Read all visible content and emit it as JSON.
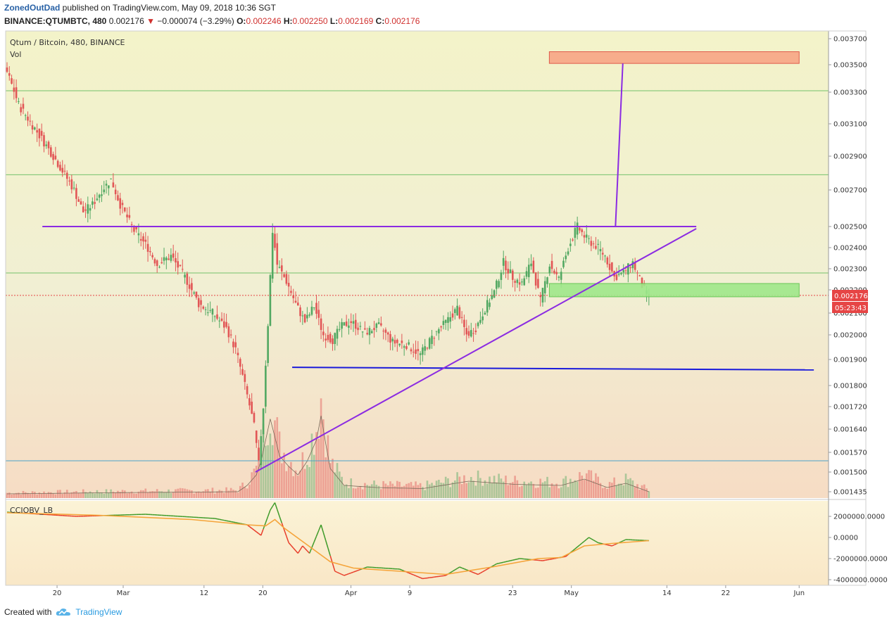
{
  "header": {
    "author": "ZonedOutDad",
    "published_text": "published on TradingView.com, May 09, 2018 10:36 SGT",
    "symbol": "BINANCE:QTUMBTC, 480",
    "last": "0.002176",
    "change_arrow": "▼",
    "change": "−0.000074 (−3.29%)",
    "ohlc": [
      {
        "label": "O:",
        "value": "0.002246"
      },
      {
        "label": "H:",
        "value": "0.002250"
      },
      {
        "label": "L:",
        "value": "0.002169"
      },
      {
        "label": "C:",
        "value": "0.002176"
      }
    ]
  },
  "legend": {
    "title": "Qtum / Bitcoin, 480, BINANCE",
    "volume": "Vol",
    "indicator": "CCIOBV_LB"
  },
  "price_badge": {
    "value": "0.002176",
    "countdown": "05:23:43",
    "color": "#e64545"
  },
  "footer": {
    "created_with": "Created with",
    "brand": "TradingView",
    "icon": "tradingview-cloud-icon"
  },
  "colors": {
    "up": "#52a862",
    "down": "#e25656",
    "trend_line": "#8b2be2",
    "support_line": "#1a1adb",
    "target_zone": "#f7ad8c",
    "buy_zone": "#9fe88a",
    "h_green": "#74c26b",
    "h_blue": "#4aa3c9",
    "cci_green": "#3f9b2a",
    "cci_red": "#e83d2a",
    "cci_orange": "#f5a43a"
  },
  "chart_data": [
    {
      "type": "candlestick",
      "title": "Qtum / Bitcoin, 480, BINANCE",
      "x_ticks": [
        "20",
        "Mar",
        "12",
        "20",
        "Apr",
        "9",
        "23",
        "May",
        "14",
        "22",
        "Jun"
      ],
      "y_ticks": [
        "0.003700",
        "0.003500",
        "0.003300",
        "0.003100",
        "0.002900",
        "0.002700",
        "0.002500",
        "0.002400",
        "0.002300",
        "0.002200",
        "0.002100",
        "0.002000",
        "0.001900",
        "0.001800",
        "0.001720",
        "0.001640",
        "0.001570",
        "0.001500",
        "0.001435"
      ],
      "ylim": [
        0.001435,
        0.0037
      ],
      "grid": false,
      "price_path": [
        [
          0,
          0.00349
        ],
        [
          6,
          0.00322
        ],
        [
          14,
          0.00305
        ],
        [
          22,
          0.00288
        ],
        [
          30,
          0.0027
        ],
        [
          34,
          0.00258
        ],
        [
          38,
          0.00262
        ],
        [
          42,
          0.0027
        ],
        [
          46,
          0.00276
        ],
        [
          50,
          0.00262
        ],
        [
          56,
          0.00248
        ],
        [
          62,
          0.0024
        ],
        [
          66,
          0.00232
        ],
        [
          72,
          0.00236
        ],
        [
          78,
          0.00226
        ],
        [
          84,
          0.00214
        ],
        [
          90,
          0.0021
        ],
        [
          96,
          0.00203
        ],
        [
          100,
          0.00194
        ],
        [
          104,
          0.0018
        ],
        [
          108,
          0.00165
        ],
        [
          110,
          0.00153
        ],
        [
          112,
          0.00172
        ],
        [
          114,
          0.00205
        ],
        [
          116,
          0.00248
        ],
        [
          118,
          0.00232
        ],
        [
          122,
          0.00224
        ],
        [
          126,
          0.00214
        ],
        [
          130,
          0.00206
        ],
        [
          134,
          0.00213
        ],
        [
          138,
          0.002
        ],
        [
          142,
          0.00198
        ],
        [
          146,
          0.00204
        ],
        [
          150,
          0.00206
        ],
        [
          156,
          0.00201
        ],
        [
          162,
          0.00204
        ],
        [
          168,
          0.00197
        ],
        [
          174,
          0.00196
        ],
        [
          180,
          0.00192
        ],
        [
          186,
          0.002
        ],
        [
          192,
          0.00207
        ],
        [
          196,
          0.00212
        ],
        [
          200,
          0.002
        ],
        [
          204,
          0.00203
        ],
        [
          208,
          0.00212
        ],
        [
          212,
          0.00219
        ],
        [
          216,
          0.00233
        ],
        [
          220,
          0.00226
        ],
        [
          224,
          0.00223
        ],
        [
          228,
          0.00233
        ],
        [
          232,
          0.00215
        ],
        [
          236,
          0.00232
        ],
        [
          240,
          0.00225
        ],
        [
          244,
          0.0024
        ],
        [
          248,
          0.0025
        ],
        [
          252,
          0.00244
        ],
        [
          256,
          0.00241
        ],
        [
          260,
          0.00236
        ],
        [
          264,
          0.00226
        ],
        [
          268,
          0.00228
        ],
        [
          272,
          0.00233
        ],
        [
          276,
          0.00222
        ],
        [
          278,
          0.00218
        ]
      ],
      "volume_path": [
        [
          0,
          0.04
        ],
        [
          40,
          0.05
        ],
        [
          100,
          0.06
        ],
        [
          104,
          0.12
        ],
        [
          108,
          0.22
        ],
        [
          110,
          0.35
        ],
        [
          112,
          0.55
        ],
        [
          114,
          0.75
        ],
        [
          116,
          0.58
        ],
        [
          118,
          0.4
        ],
        [
          122,
          0.3
        ],
        [
          126,
          0.22
        ],
        [
          130,
          0.35
        ],
        [
          134,
          0.55
        ],
        [
          136,
          0.78
        ],
        [
          138,
          0.52
        ],
        [
          140,
          0.28
        ],
        [
          146,
          0.12
        ],
        [
          160,
          0.1
        ],
        [
          180,
          0.09
        ],
        [
          200,
          0.16
        ],
        [
          220,
          0.13
        ],
        [
          240,
          0.12
        ],
        [
          250,
          0.18
        ],
        [
          260,
          0.1
        ],
        [
          268,
          0.14
        ],
        [
          278,
          0.06
        ]
      ],
      "horizontal_levels": [
        {
          "price": 0.00331,
          "color": "h_green"
        },
        {
          "price": 0.00279,
          "color": "h_green"
        },
        {
          "price": 0.00228,
          "color": "h_green"
        },
        {
          "price": 0.00154,
          "color": "h_blue"
        }
      ],
      "current_price": 0.002176,
      "drawings": {
        "neckline": [
          {
            "x": "2018-02-18",
            "y": 0.0025
          },
          {
            "x": "2018-05-18",
            "y": 0.0025
          }
        ],
        "support": [
          {
            "x": "2018-03-24",
            "y": 0.00187
          },
          {
            "x": "2018-06-03",
            "y": 0.00186
          }
        ],
        "ascending_trendline": [
          {
            "x": "2018-03-19",
            "y": 0.0015
          },
          {
            "x": "2018-05-18",
            "y": 0.00249
          }
        ],
        "target_move": [
          {
            "x": "2018-05-07",
            "y": 0.0025
          },
          {
            "x": "2018-05-08",
            "y": 0.00351
          }
        ],
        "target_zone": {
          "x0": "2018-04-28",
          "x1": "2018-06-01",
          "y0": 0.00351,
          "y1": 0.0036
        },
        "buy_zone": {
          "x0": "2018-04-28",
          "x1": "2018-06-01",
          "y0": 0.00217,
          "y1": 0.00223
        }
      }
    },
    {
      "type": "line",
      "title": "CCIOBV_LB",
      "y_ticks": [
        "2000000.0000",
        "0.0000",
        "-2000000.0000",
        "-4000000.0000"
      ],
      "ylim": [
        -4700000,
        3400000
      ],
      "series": [
        {
          "color": "cci_main",
          "values": [
            [
              0,
              2400000
            ],
            [
              30,
              2000000
            ],
            [
              60,
              2200000
            ],
            [
              90,
              1800000
            ],
            [
              104,
              1200000
            ],
            [
              110,
              200000
            ],
            [
              114,
              2600000
            ],
            [
              116,
              3300000
            ],
            [
              118,
              2000000
            ],
            [
              122,
              -500000
            ],
            [
              126,
              -1500000
            ],
            [
              128,
              -800000
            ],
            [
              131,
              -1500000
            ],
            [
              136,
              1200000
            ],
            [
              139,
              -1000000
            ],
            [
              142,
              -3200000
            ],
            [
              146,
              -3600000
            ],
            [
              156,
              -2800000
            ],
            [
              170,
              -3000000
            ],
            [
              180,
              -3900000
            ],
            [
              190,
              -3600000
            ],
            [
              196,
              -2800000
            ],
            [
              204,
              -3500000
            ],
            [
              212,
              -2500000
            ],
            [
              222,
              -2000000
            ],
            [
              232,
              -2200000
            ],
            [
              242,
              -1800000
            ],
            [
              252,
              0
            ],
            [
              256,
              -500000
            ],
            [
              262,
              -800000
            ],
            [
              268,
              -200000
            ],
            [
              278,
              -300000
            ]
          ]
        },
        {
          "color": "cci_orange",
          "values": [
            [
              0,
              2350000
            ],
            [
              40,
              2100000
            ],
            [
              80,
              1700000
            ],
            [
              104,
              1200000
            ],
            [
              112,
              1100000
            ],
            [
              116,
              1700000
            ],
            [
              120,
              900000
            ],
            [
              130,
              -700000
            ],
            [
              140,
              -2300000
            ],
            [
              150,
              -2900000
            ],
            [
              170,
              -3200000
            ],
            [
              190,
              -3500000
            ],
            [
              210,
              -2800000
            ],
            [
              230,
              -2000000
            ],
            [
              240,
              -1900000
            ],
            [
              250,
              -800000
            ],
            [
              260,
              -600000
            ],
            [
              278,
              -300000
            ]
          ]
        }
      ]
    }
  ]
}
